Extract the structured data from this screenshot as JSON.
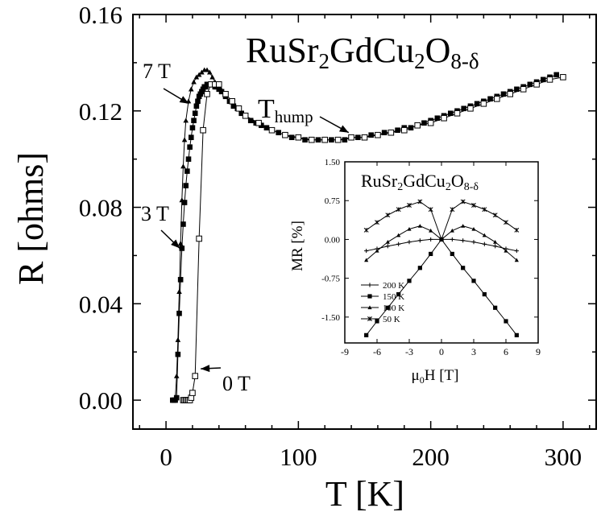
{
  "chart_data": [
    {
      "type": "scatter",
      "title": "RuSr₂GdCu₂O₈₋δ",
      "xlabel": "T [K]",
      "ylabel": "R [ohms]",
      "xlim": [
        -25,
        325
      ],
      "ylim": [
        -0.012,
        0.16
      ],
      "xticks": [
        0,
        100,
        200,
        300
      ],
      "yticks": [
        0.0,
        0.04,
        0.08,
        0.12,
        0.16
      ],
      "ytick_labels": [
        "0.00",
        "0.04",
        "0.08",
        "0.12",
        "0.16"
      ],
      "grid": false,
      "annotations": [
        {
          "text": "7 T",
          "target_series": "7 T",
          "x": 16,
          "y": 0.123
        },
        {
          "text": "3 T",
          "target_series": "3 T",
          "x": 11,
          "y": 0.063
        },
        {
          "text": "0 T",
          "target_series": "0 T",
          "x": 25,
          "y": 0.013
        },
        {
          "text": "Thump",
          "main": "T",
          "sub": "hump",
          "x": 138,
          "y": 0.111
        }
      ],
      "series": [
        {
          "name": "7 T",
          "marker": "triangle",
          "x": [
            6,
            7,
            8,
            9,
            10,
            11,
            12,
            13,
            14,
            15,
            17,
            19,
            21,
            23,
            25,
            27,
            29,
            31,
            33,
            35,
            37,
            40
          ],
          "y": [
            0.0,
            0.001,
            0.01,
            0.025,
            0.045,
            0.065,
            0.083,
            0.097,
            0.108,
            0.116,
            0.124,
            0.129,
            0.132,
            0.134,
            0.135,
            0.136,
            0.137,
            0.137,
            0.136,
            0.134,
            0.132,
            0.13
          ]
        },
        {
          "name": "3 T",
          "marker": "square-filled",
          "x": [
            5,
            6,
            7,
            8,
            9,
            10,
            11,
            12,
            13,
            14,
            15,
            16,
            17,
            18,
            19,
            20,
            21,
            22,
            23,
            24,
            25,
            26,
            27,
            28,
            29,
            30,
            31,
            32,
            33,
            34,
            35,
            36,
            37,
            38,
            40,
            42,
            45,
            48,
            51,
            54,
            57,
            60,
            64,
            68,
            72,
            76,
            80,
            85,
            90,
            95,
            100,
            105,
            110,
            115,
            120,
            125,
            130,
            135,
            140,
            145,
            150,
            155,
            160,
            165,
            170,
            175,
            180,
            185,
            190,
            195,
            200,
            205,
            210,
            215,
            220,
            225,
            230,
            235,
            240,
            245,
            250,
            255,
            260,
            265,
            270,
            275,
            280,
            285,
            290,
            295
          ],
          "y": [
            0.0,
            0.0,
            0.0,
            0.001,
            0.019,
            0.036,
            0.05,
            0.063,
            0.073,
            0.082,
            0.089,
            0.095,
            0.1,
            0.105,
            0.109,
            0.113,
            0.116,
            0.119,
            0.122,
            0.124,
            0.126,
            0.127,
            0.128,
            0.129,
            0.13,
            0.13,
            0.131,
            0.131,
            0.131,
            0.131,
            0.131,
            0.131,
            0.13,
            0.13,
            0.129,
            0.128,
            0.126,
            0.124,
            0.122,
            0.121,
            0.119,
            0.118,
            0.116,
            0.115,
            0.114,
            0.113,
            0.112,
            0.111,
            0.11,
            0.109,
            0.109,
            0.108,
            0.108,
            0.108,
            0.108,
            0.108,
            0.108,
            0.108,
            0.109,
            0.109,
            0.109,
            0.11,
            0.11,
            0.111,
            0.111,
            0.112,
            0.113,
            0.113,
            0.114,
            0.115,
            0.116,
            0.117,
            0.118,
            0.119,
            0.12,
            0.121,
            0.122,
            0.123,
            0.124,
            0.125,
            0.126,
            0.127,
            0.128,
            0.129,
            0.13,
            0.131,
            0.132,
            0.133,
            0.134,
            0.135
          ]
        },
        {
          "name": "0 T",
          "marker": "square-open",
          "x": [
            13,
            14,
            15,
            16,
            17,
            18,
            19,
            20,
            22,
            25,
            28,
            31,
            34,
            37,
            40,
            45,
            50,
            55,
            60,
            70,
            80,
            90,
            100,
            110,
            120,
            130,
            140,
            150,
            160,
            170,
            180,
            190,
            200,
            210,
            220,
            230,
            240,
            250,
            260,
            270,
            280,
            290,
            300
          ],
          "y": [
            0.0,
            0.0,
            0.0,
            0.0,
            0.0,
            0.0,
            0.001,
            0.003,
            0.01,
            0.067,
            0.112,
            0.127,
            0.131,
            0.131,
            0.131,
            0.127,
            0.124,
            0.121,
            0.118,
            0.115,
            0.112,
            0.11,
            0.109,
            0.108,
            0.108,
            0.108,
            0.109,
            0.109,
            0.11,
            0.111,
            0.112,
            0.114,
            0.115,
            0.117,
            0.119,
            0.121,
            0.123,
            0.125,
            0.127,
            0.129,
            0.131,
            0.133,
            0.134
          ]
        }
      ]
    },
    {
      "type": "line",
      "title": "RuSr₂GdCu₂O₈₋δ",
      "xlabel": "μ0H [T]",
      "ylabel": "MR [%]",
      "xlim": [
        -9,
        9
      ],
      "ylim": [
        -2.0,
        1.5
      ],
      "xticks": [
        -9,
        -6,
        -3,
        0,
        3,
        6,
        9
      ],
      "yticks": [
        1.5,
        0.75,
        0.0,
        -0.75,
        -1.5
      ],
      "ytick_labels": [
        "1.50",
        "0.75",
        "0.00",
        "-0.75",
        "-1.50"
      ],
      "legend": "lower-left",
      "series": [
        {
          "name": "200 K",
          "marker": "plus",
          "x": [
            -7,
            -6,
            -5,
            -4,
            -3,
            -2,
            -1,
            0,
            1,
            2,
            3,
            4,
            5,
            6,
            7
          ],
          "y": [
            -0.22,
            -0.18,
            -0.13,
            -0.09,
            -0.05,
            -0.02,
            0.0,
            0.0,
            0.0,
            -0.02,
            -0.05,
            -0.09,
            -0.13,
            -0.18,
            -0.22
          ]
        },
        {
          "name": "150 K",
          "marker": "square",
          "x": [
            -7,
            -6,
            -5,
            -4,
            -3,
            -2,
            -1,
            0,
            1,
            2,
            3,
            4,
            5,
            6,
            7
          ],
          "y": [
            -1.85,
            -1.58,
            -1.32,
            -1.06,
            -0.8,
            -0.55,
            -0.28,
            0.0,
            -0.28,
            -0.55,
            -0.8,
            -1.06,
            -1.32,
            -1.58,
            -1.85
          ]
        },
        {
          "name": "100 K",
          "marker": "triangle",
          "x": [
            -7,
            -6,
            -5,
            -4,
            -3,
            -2,
            -1,
            0,
            1,
            2,
            3,
            4,
            5,
            6,
            7
          ],
          "y": [
            -0.4,
            -0.22,
            -0.05,
            0.08,
            0.2,
            0.26,
            0.17,
            0.0,
            0.17,
            0.26,
            0.2,
            0.08,
            -0.05,
            -0.22,
            -0.4
          ]
        },
        {
          "name": "50 K",
          "marker": "star",
          "x": [
            -7,
            -6,
            -5,
            -4,
            -3,
            -2,
            -1,
            0,
            1,
            2,
            3,
            4,
            5,
            6,
            7
          ],
          "y": [
            0.18,
            0.33,
            0.47,
            0.58,
            0.66,
            0.73,
            0.58,
            0.0,
            0.58,
            0.73,
            0.66,
            0.58,
            0.47,
            0.33,
            0.18
          ]
        }
      ]
    }
  ]
}
